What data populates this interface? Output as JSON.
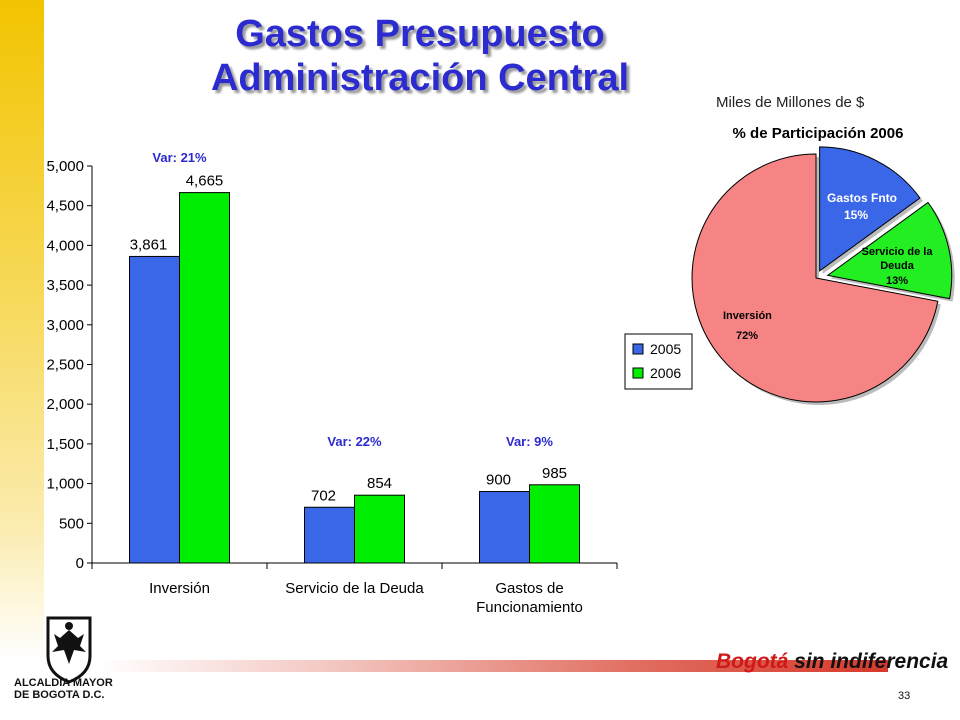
{
  "title_line1": "Gastos Presupuesto",
  "title_line2": "Administración Central",
  "units_label": "Miles de Millones de $",
  "page_number": "33",
  "logo": {
    "line1": "ALCALDIA MAYOR",
    "line2": "DE BOGOTA D.C."
  },
  "brand": {
    "part1": "Bogotá",
    "part2": "sin indiferencia"
  },
  "chart_data": [
    {
      "type": "bar",
      "categories": [
        "Inversión",
        "Servicio de la Deuda",
        "Gastos de Funcionamiento"
      ],
      "category_lines": [
        [
          "Inversión"
        ],
        [
          "Servicio de la Deuda"
        ],
        [
          "Gastos de",
          "Funcionamiento"
        ]
      ],
      "series": [
        {
          "name": "2005",
          "values": [
            3861,
            702,
            900
          ],
          "color": "#3a66e8"
        },
        {
          "name": "2006",
          "values": [
            4665,
            854,
            985
          ],
          "color": "#00ee00"
        }
      ],
      "value_labels": [
        [
          "3,861",
          "702",
          "900"
        ],
        [
          "4,665",
          "854",
          "985"
        ]
      ],
      "var_labels": [
        "Var: 21%",
        "Var: 22%",
        "Var: 9%"
      ],
      "ylim": [
        0,
        5000
      ],
      "yticks": [
        "0",
        "500",
        "1,000",
        "1,500",
        "2,000",
        "2,500",
        "3,000",
        "3,500",
        "4,000",
        "4,500",
        "5,000"
      ],
      "legend_position": "right",
      "grid": false
    },
    {
      "type": "pie",
      "title": "% de Participación 2006",
      "slices": [
        {
          "label": "Gastos Fnto",
          "pct_label": "15%",
          "value": 15,
          "color": "#3a66e8"
        },
        {
          "label_lines": [
            "Servicio de la",
            "Deuda"
          ],
          "pct_label": "13%",
          "value": 13,
          "color": "#22ee22"
        },
        {
          "label": "Inversión",
          "pct_label": "72%",
          "value": 72,
          "color": "#f78484"
        }
      ]
    }
  ]
}
